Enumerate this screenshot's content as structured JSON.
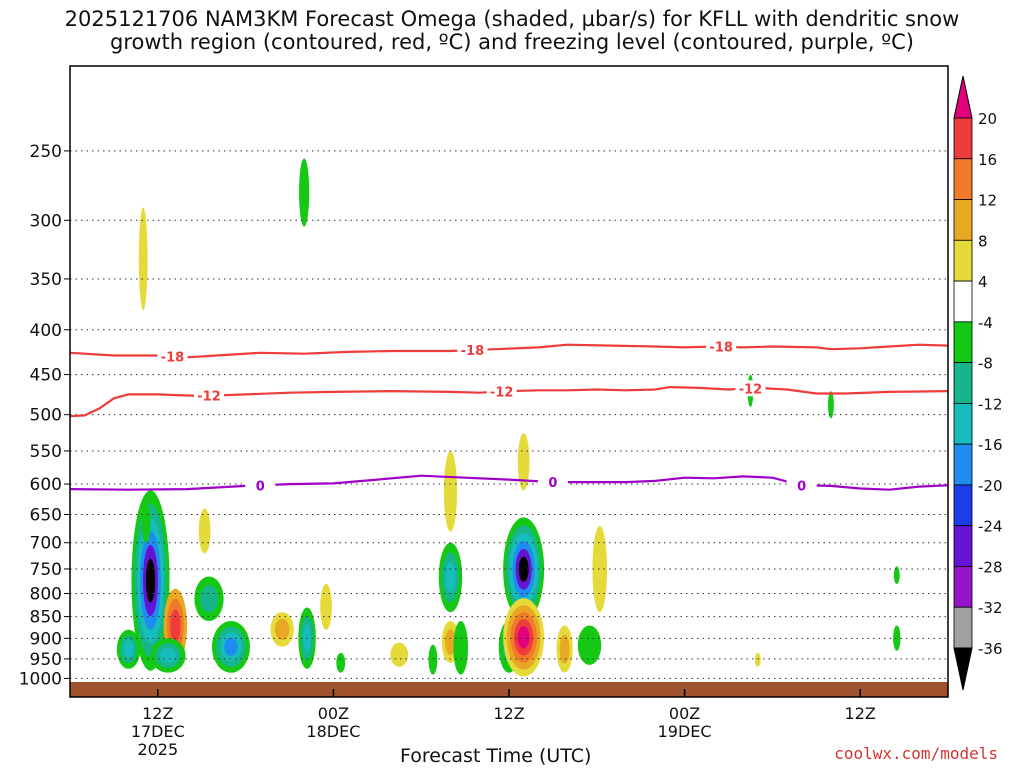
{
  "title_line1": "2025121706 NAM3KM Forecast Omega (shaded, µbar/s) for KFLL with dendritic snow",
  "title_line2": "growth region (contoured, red, ºC) and freezing level (contoured, purple, ºC)",
  "credit": "coolwx.com/models",
  "chart_data": {
    "type": "time-height cross section",
    "xlabel": "Forecast Time (UTC)",
    "x_ticks": [
      {
        "lines": [
          "12Z",
          "17DEC",
          "2025"
        ],
        "hour": 6
      },
      {
        "lines": [
          "00Z",
          "18DEC"
        ],
        "hour": 18
      },
      {
        "lines": [
          "12Z"
        ],
        "hour": 30
      },
      {
        "lines": [
          "00Z",
          "19DEC"
        ],
        "hour": 42
      },
      {
        "lines": [
          "12Z"
        ],
        "hour": 54
      }
    ],
    "x_range_hours": [
      0,
      60
    ],
    "y_scale": "log pressure (hPa), inverted",
    "y_range_hpa": [
      1050,
      200
    ],
    "y_ticks": [
      250,
      300,
      350,
      400,
      450,
      500,
      550,
      600,
      650,
      700,
      750,
      800,
      850,
      900,
      950,
      1000
    ],
    "grid": "dotted horizontal at y ticks",
    "colorbar": {
      "label_values": [
        20,
        16,
        12,
        8,
        4,
        -4,
        -8,
        -12,
        -16,
        -20,
        -24,
        -28,
        -32,
        -36
      ],
      "bins": [
        {
          "range": [
            20,
            24
          ],
          "color": "#e3007b"
        },
        {
          "range": [
            16,
            20
          ],
          "color": "#ee3b3b"
        },
        {
          "range": [
            12,
            16
          ],
          "color": "#f07a2a"
        },
        {
          "range": [
            8,
            12
          ],
          "color": "#e8a824"
        },
        {
          "range": [
            4,
            8
          ],
          "color": "#e6d93a"
        },
        {
          "range": [
            -4,
            4
          ],
          "color": "#ffffff"
        },
        {
          "range": [
            -8,
            -4
          ],
          "color": "#14c814"
        },
        {
          "range": [
            -12,
            -8
          ],
          "color": "#17b58a"
        },
        {
          "range": [
            -16,
            -12
          ],
          "color": "#17bcbc"
        },
        {
          "range": [
            -20,
            -16
          ],
          "color": "#1e8cf0"
        },
        {
          "range": [
            -24,
            -20
          ],
          "color": "#1e3ce8"
        },
        {
          "range": [
            -28,
            -24
          ],
          "color": "#6414d2"
        },
        {
          "range": [
            -32,
            -28
          ],
          "color": "#9614c8"
        },
        {
          "range": [
            -36,
            -32
          ],
          "color": "#a0a0a0"
        },
        {
          "range": [
            -40,
            -36
          ],
          "color": "#000000"
        }
      ]
    },
    "contours": [
      {
        "name": "-18",
        "color": "#ee3b3b",
        "label": "-18",
        "points": [
          [
            0,
            425
          ],
          [
            3,
            428
          ],
          [
            6,
            428
          ],
          [
            8,
            430
          ],
          [
            10,
            428
          ],
          [
            13,
            425
          ],
          [
            16,
            426
          ],
          [
            19,
            424
          ],
          [
            22,
            423
          ],
          [
            26,
            423
          ],
          [
            29,
            421
          ],
          [
            32,
            419
          ],
          [
            34,
            416
          ],
          [
            37,
            417
          ],
          [
            40,
            418
          ],
          [
            42,
            419
          ],
          [
            44,
            418
          ],
          [
            46,
            419
          ],
          [
            48,
            418
          ],
          [
            51,
            419
          ],
          [
            52,
            421
          ],
          [
            54,
            420
          ],
          [
            55,
            419
          ],
          [
            57,
            417
          ],
          [
            58,
            416
          ],
          [
            60,
            417
          ]
        ],
        "label_hours": [
          7,
          27.5,
          44.5
        ]
      },
      {
        "name": "-12",
        "color": "#ee3b3b",
        "label": "-12",
        "points": [
          [
            0,
            502
          ],
          [
            1,
            501
          ],
          [
            2,
            492
          ],
          [
            3,
            479
          ],
          [
            4,
            474
          ],
          [
            6,
            474
          ],
          [
            9,
            476
          ],
          [
            12,
            474
          ],
          [
            15,
            472
          ],
          [
            18,
            471
          ],
          [
            22,
            470
          ],
          [
            26,
            471
          ],
          [
            28,
            472
          ],
          [
            30,
            470
          ],
          [
            32,
            469
          ],
          [
            34,
            469
          ],
          [
            36,
            468
          ],
          [
            38,
            469
          ],
          [
            40,
            468
          ],
          [
            41,
            465
          ],
          [
            43,
            466
          ],
          [
            45,
            468
          ],
          [
            47,
            466
          ],
          [
            49,
            468
          ],
          [
            51,
            473
          ],
          [
            53,
            473
          ],
          [
            56,
            471
          ],
          [
            60,
            470
          ]
        ],
        "label_hours": [
          9.5,
          29.5,
          46.5
        ]
      },
      {
        "name": "0",
        "color": "#a000c8",
        "label": "0",
        "points": [
          [
            0,
            608
          ],
          [
            4,
            609
          ],
          [
            8,
            608
          ],
          [
            12,
            603
          ],
          [
            15,
            600
          ],
          [
            18,
            599
          ],
          [
            21,
            593
          ],
          [
            24,
            587
          ],
          [
            27,
            590
          ],
          [
            30,
            593
          ],
          [
            33,
            597
          ],
          [
            36,
            597
          ],
          [
            38,
            597
          ],
          [
            40,
            595
          ],
          [
            42,
            590
          ],
          [
            44,
            591
          ],
          [
            46,
            588
          ],
          [
            48,
            590
          ],
          [
            50,
            602
          ],
          [
            52,
            603
          ],
          [
            54,
            607
          ],
          [
            56,
            609
          ],
          [
            58,
            604
          ],
          [
            60,
            602
          ]
        ],
        "label_hours": [
          13,
          33,
          50
        ]
      }
    ],
    "omega_features": [
      {
        "hour": 5.5,
        "lo": 610,
        "hi": 980,
        "w": 1.3,
        "levels": [
          -8,
          -12,
          -16,
          -20,
          -28,
          -40
        ]
      },
      {
        "hour": 4.0,
        "lo": 880,
        "hi": 975,
        "w": 0.8,
        "levels": [
          -8,
          -12,
          -16
        ]
      },
      {
        "hour": 7.2,
        "lo": 790,
        "hi": 960,
        "w": 0.8,
        "levels": [
          8,
          12,
          16
        ]
      },
      {
        "hour": 5.2,
        "lo": 630,
        "hi": 700,
        "w": 0.3,
        "levels": [
          -8
        ]
      },
      {
        "hour": 5.0,
        "lo": 290,
        "hi": 380,
        "w": 0.3,
        "levels": [
          4
        ]
      },
      {
        "hour": 6.7,
        "lo": 900,
        "hi": 985,
        "w": 1.2,
        "levels": [
          -8,
          -12,
          -16
        ]
      },
      {
        "hour": 9.5,
        "lo": 765,
        "hi": 860,
        "w": 1.0,
        "levels": [
          -8,
          -12
        ]
      },
      {
        "hour": 9.2,
        "lo": 640,
        "hi": 720,
        "w": 0.4,
        "levels": [
          4
        ]
      },
      {
        "hour": 11.0,
        "lo": 860,
        "hi": 985,
        "w": 1.3,
        "levels": [
          -8,
          -12,
          -16,
          -20
        ]
      },
      {
        "hour": 14.5,
        "lo": 840,
        "hi": 920,
        "w": 0.8,
        "levels": [
          4,
          8
        ]
      },
      {
        "hour": 16.2,
        "lo": 830,
        "hi": 975,
        "w": 0.6,
        "levels": [
          -8,
          -12,
          -16
        ]
      },
      {
        "hour": 16.0,
        "lo": 255,
        "hi": 305,
        "w": 0.35,
        "levels": [
          -8
        ]
      },
      {
        "hour": 17.5,
        "lo": 780,
        "hi": 880,
        "w": 0.4,
        "levels": [
          4
        ]
      },
      {
        "hour": 18.5,
        "lo": 935,
        "hi": 985,
        "w": 0.3,
        "levels": [
          -8
        ]
      },
      {
        "hour": 22.5,
        "lo": 910,
        "hi": 970,
        "w": 0.6,
        "levels": [
          4
        ]
      },
      {
        "hour": 24.8,
        "lo": 915,
        "hi": 990,
        "w": 0.3,
        "levels": [
          -8
        ]
      },
      {
        "hour": 26.0,
        "lo": 550,
        "hi": 680,
        "w": 0.45,
        "levels": [
          4
        ]
      },
      {
        "hour": 26.0,
        "lo": 700,
        "hi": 840,
        "w": 0.8,
        "levels": [
          -8,
          -12,
          -16
        ]
      },
      {
        "hour": 26.0,
        "lo": 860,
        "hi": 960,
        "w": 0.6,
        "levels": [
          4,
          8
        ]
      },
      {
        "hour": 26.7,
        "lo": 860,
        "hi": 990,
        "w": 0.5,
        "levels": [
          -8
        ]
      },
      {
        "hour": 30.0,
        "lo": 860,
        "hi": 985,
        "w": 0.7,
        "levels": [
          -8,
          -12
        ]
      },
      {
        "hour": 31.0,
        "lo": 525,
        "hi": 610,
        "w": 0.4,
        "levels": [
          4
        ]
      },
      {
        "hour": 31.0,
        "lo": 655,
        "hi": 860,
        "w": 1.4,
        "levels": [
          -8,
          -12,
          -16,
          -20,
          -28,
          -40
        ]
      },
      {
        "hour": 31.0,
        "lo": 810,
        "hi": 995,
        "w": 1.4,
        "levels": [
          4,
          8,
          12,
          16,
          22
        ]
      },
      {
        "hour": 33.8,
        "lo": 870,
        "hi": 985,
        "w": 0.55,
        "levels": [
          4,
          8
        ]
      },
      {
        "hour": 36.2,
        "lo": 670,
        "hi": 840,
        "w": 0.5,
        "levels": [
          4
        ]
      },
      {
        "hour": 35.5,
        "lo": 870,
        "hi": 965,
        "w": 0.8,
        "levels": [
          -8
        ]
      },
      {
        "hour": 46.5,
        "lo": 450,
        "hi": 490,
        "w": 0.2,
        "levels": [
          -8
        ]
      },
      {
        "hour": 47.0,
        "lo": 935,
        "hi": 970,
        "w": 0.2,
        "levels": [
          4
        ]
      },
      {
        "hour": 52.0,
        "lo": 470,
        "hi": 505,
        "w": 0.2,
        "levels": [
          -8
        ]
      },
      {
        "hour": 56.5,
        "lo": 745,
        "hi": 780,
        "w": 0.2,
        "levels": [
          -8
        ]
      },
      {
        "hour": 56.5,
        "lo": 870,
        "hi": 930,
        "w": 0.25,
        "levels": [
          -8
        ]
      }
    ]
  }
}
